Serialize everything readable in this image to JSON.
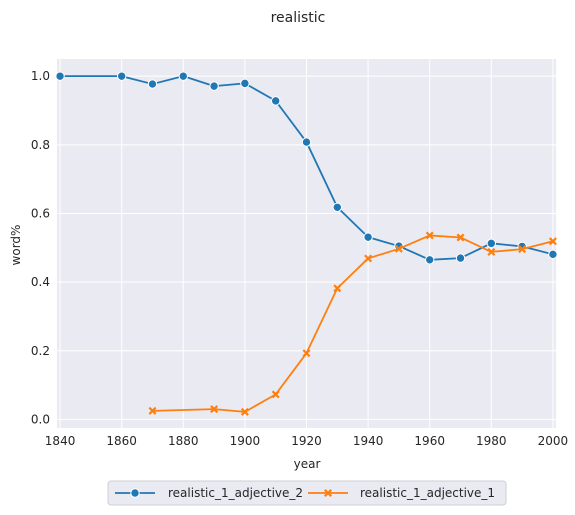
{
  "chart_data": {
    "type": "line",
    "title": "realistic",
    "xlabel": "year",
    "ylabel": "word%",
    "xlim": [
      1839,
      2001
    ],
    "ylim": [
      -0.025,
      1.05
    ],
    "xticks": [
      1840,
      1860,
      1880,
      1900,
      1920,
      1940,
      1960,
      1980,
      2000
    ],
    "yticks": [
      0.0,
      0.2,
      0.4,
      0.6,
      0.8,
      1.0
    ],
    "xtick_labels": [
      "1840",
      "1860",
      "1880",
      "1900",
      "1920",
      "1940",
      "1960",
      "1980",
      "2000"
    ],
    "ytick_labels": [
      "0.0",
      "0.2",
      "0.4",
      "0.6",
      "0.8",
      "1.0"
    ],
    "grid": true,
    "legend_position": "bottom-center",
    "series": [
      {
        "name": "realistic_1_adjective_2",
        "color": "#1f77b4",
        "marker": "circle",
        "x": [
          1840,
          1860,
          1870,
          1880,
          1890,
          1900,
          1910,
          1920,
          1930,
          1940,
          1950,
          1960,
          1970,
          1980,
          1990,
          2000
        ],
        "y": [
          1.0,
          1.0,
          0.977,
          1.0,
          0.971,
          0.979,
          0.928,
          0.808,
          0.618,
          0.531,
          0.505,
          0.465,
          0.47,
          0.513,
          0.504,
          0.481
        ]
      },
      {
        "name": "realistic_1_adjective_1",
        "color": "#ff7f0e",
        "marker": "x",
        "x": [
          1870,
          1890,
          1900,
          1910,
          1920,
          1930,
          1940,
          1950,
          1960,
          1970,
          1980,
          1990,
          2000
        ],
        "y": [
          0.025,
          0.03,
          0.022,
          0.073,
          0.193,
          0.382,
          0.469,
          0.497,
          0.536,
          0.53,
          0.488,
          0.496,
          0.519
        ]
      }
    ]
  }
}
